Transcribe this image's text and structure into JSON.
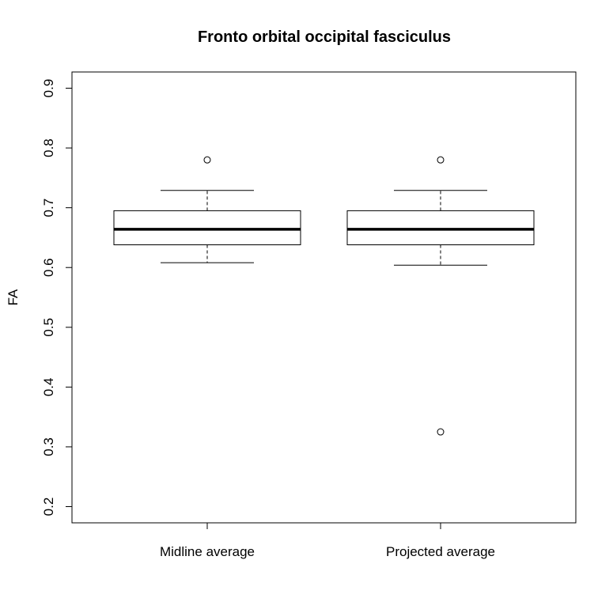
{
  "chart_data": {
    "type": "box",
    "title": "Fronto orbital occipital fasciculus",
    "xlabel": "",
    "ylabel": "FA",
    "ylim": [
      0.2,
      0.9
    ],
    "yticks": [
      "0.2",
      "0.3",
      "0.4",
      "0.5",
      "0.6",
      "0.7",
      "0.8",
      "0.9"
    ],
    "categories": [
      "Midline average",
      "Projected average"
    ],
    "boxes": [
      {
        "whisker_low": 0.608,
        "q1": 0.638,
        "median": 0.664,
        "q3": 0.695,
        "whisker_high": 0.729,
        "outliers": [
          0.78
        ]
      },
      {
        "whisker_low": 0.604,
        "q1": 0.638,
        "median": 0.664,
        "q3": 0.695,
        "whisker_high": 0.729,
        "outliers": [
          0.78,
          0.325
        ]
      }
    ],
    "grid": false,
    "legend": "none"
  }
}
